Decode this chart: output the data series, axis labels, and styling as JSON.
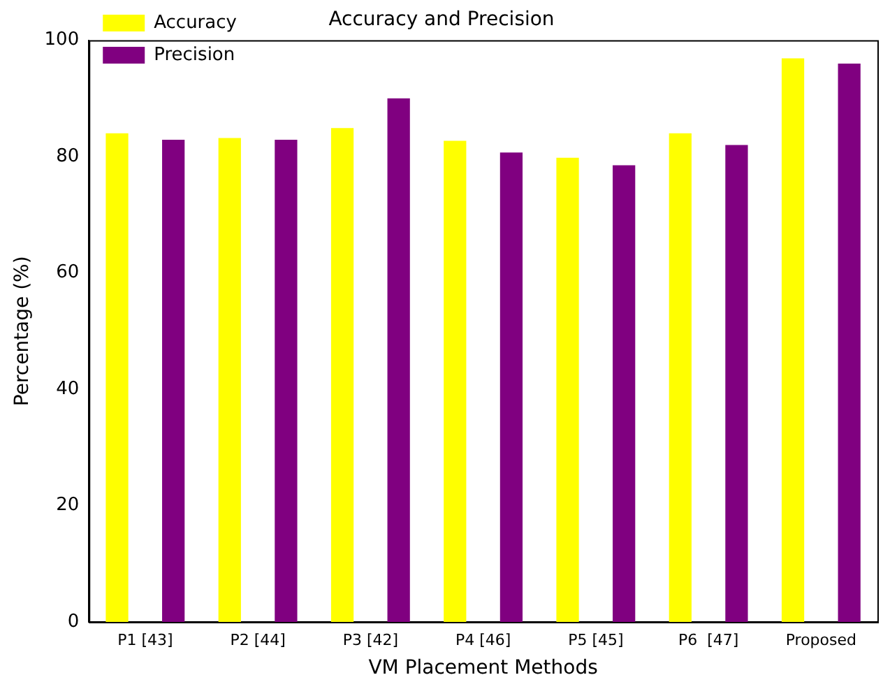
{
  "chart_data": {
    "type": "bar",
    "title": "Accuracy and Precision",
    "xlabel": "VM Placement Methods",
    "ylabel": "Percentage (%)",
    "categories": [
      "P1 [43]",
      "P2 [44]",
      "P3 [42]",
      "P4 [46]",
      "P5 [45]",
      "P6  [47]",
      "Proposed"
    ],
    "series": [
      {
        "name": "Accuracy",
        "color": "#ffff00",
        "values": [
          84.0,
          83.2,
          84.9,
          82.7,
          79.8,
          84.0,
          96.9
        ]
      },
      {
        "name": "Precision",
        "color": "#800080",
        "values": [
          82.9,
          82.9,
          90.0,
          80.7,
          78.5,
          82.0,
          96.0
        ]
      }
    ],
    "ylim": [
      0,
      100
    ],
    "yticks": [
      0,
      20,
      40,
      60,
      80,
      100
    ],
    "grid": false,
    "legend": "top left"
  }
}
